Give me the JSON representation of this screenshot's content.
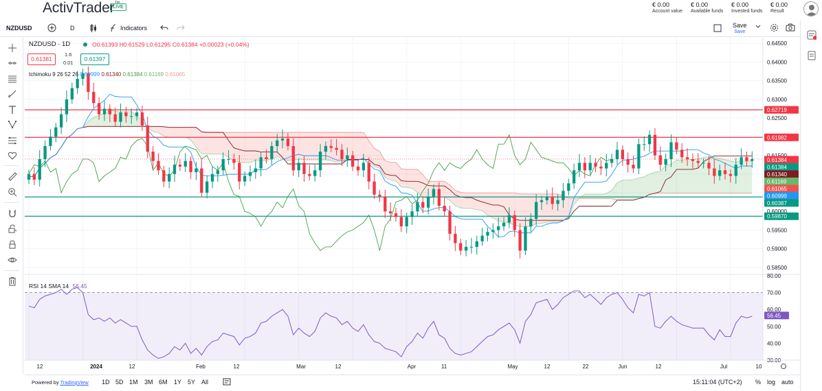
{
  "header": {
    "logo": "ActivTrader",
    "logo_mark": "™",
    "live_badge": "LIVE",
    "account": [
      {
        "value": "€ 0.00",
        "label": "Account value"
      },
      {
        "value": "€ 0.00",
        "label": "Available funds"
      },
      {
        "value": "€ 0.00",
        "label": "Invested funds"
      },
      {
        "value": "€ 0.00",
        "label": "Result"
      }
    ]
  },
  "toolbar": {
    "symbol": "NZDUSD",
    "interval": "D",
    "indicators_label": "Indicators",
    "save_label": "Save",
    "save_sub": "Save"
  },
  "legend": {
    "title": "NZDUSD · 1D",
    "ohlc": "O0.61393 H0.61529 L0.61295 C0.61384 +0.00023 (+0.04%)",
    "sell_price": "0.61381",
    "buy_price": "0.61397",
    "lot": "1.6",
    "step": "0.01",
    "ichimoku_label": "Ichimoku 9 26 52 26",
    "ichimoku_values": [
      {
        "value": "0.60999",
        "color": "#2196f3"
      },
      {
        "value": "0.61340",
        "color": "#801922"
      },
      {
        "value": "0.61384",
        "color": "#43a047"
      },
      {
        "value": "0.61169",
        "color": "#a5d6a7"
      },
      {
        "value": "0.61065",
        "color": "#ef9a9a"
      }
    ],
    "rsi_label": "RSI 14 SMA 14",
    "rsi_value": "56.45"
  },
  "price_axis": [
    "0.64500",
    "0.64000",
    "0.63500",
    "0.63000",
    "0.62500",
    "0.62000",
    "0.61500",
    "0.61000",
    "0.60500",
    "0.60000",
    "0.59500",
    "0.59000",
    "0.58500"
  ],
  "rsi_axis": [
    "80.00",
    "70.00",
    "60.00",
    "50.00",
    "40.00",
    "30.00"
  ],
  "price_labels": [
    {
      "value": "0.62719",
      "color": "#f23645"
    },
    {
      "value": "0.61982",
      "color": "#f23645"
    },
    {
      "value": "0.61384",
      "color": "#f23645"
    },
    {
      "value": "0.61384",
      "color": "#089981"
    },
    {
      "value": "0.61340",
      "color": "#801922"
    },
    {
      "value": "0.61169",
      "color": "#66bb6a"
    },
    {
      "value": "0.61065",
      "color": "#ef5350"
    },
    {
      "value": "0.60999",
      "color": "#2196f3"
    },
    {
      "value": "0.60387",
      "color": "#089981"
    },
    {
      "value": "0.59870",
      "color": "#089981"
    }
  ],
  "rsi_price_label": "56.45",
  "time_axis": [
    "12",
    "2024",
    "12",
    "Feb",
    "12",
    "Mar",
    "12",
    "Apr",
    "11",
    "May",
    "12",
    "22",
    "Jun",
    "12",
    "Jul",
    "10"
  ],
  "bottom": {
    "powered": "Powered by",
    "tradingview": "TradingView",
    "ranges": [
      "1D",
      "5D",
      "1M",
      "3M",
      "6M",
      "1Y",
      "5Y",
      "All"
    ],
    "time": "15:11:04 (UTC+2)",
    "percent": "%",
    "log": "log",
    "auto": "auto"
  },
  "chart_data": {
    "type": "candlestick",
    "symbol": "NZDUSD",
    "interval": "1D",
    "ylim": [
      0.5835,
      0.6465
    ],
    "horizontal_lines": [
      {
        "value": 0.62719,
        "color": "#f23645"
      },
      {
        "value": 0.61982,
        "color": "#f23645"
      },
      {
        "value": 0.60387,
        "color": "#089981"
      },
      {
        "value": 0.5987,
        "color": "#089981"
      }
    ],
    "close": [
      0.61,
      0.6085,
      0.614,
      0.6175,
      0.62,
      0.6225,
      0.626,
      0.63,
      0.633,
      0.6355,
      0.637,
      0.632,
      0.629,
      0.626,
      0.6275,
      0.626,
      0.624,
      0.6265,
      0.6255,
      0.6255,
      0.6265,
      0.623,
      0.616,
      0.6135,
      0.611,
      0.608,
      0.61,
      0.6125,
      0.612,
      0.6135,
      0.6105,
      0.6115,
      0.605,
      0.608,
      0.61,
      0.611,
      0.614,
      0.614,
      0.613,
      0.608,
      0.6095,
      0.6105,
      0.6115,
      0.6145,
      0.614,
      0.6175,
      0.619,
      0.6195,
      0.6175,
      0.611,
      0.613,
      0.61,
      0.6095,
      0.611,
      0.616,
      0.6175,
      0.617,
      0.6165,
      0.614,
      0.615,
      0.612,
      0.611,
      0.613,
      0.608,
      0.6045,
      0.604,
      0.6,
      0.5995,
      0.5985,
      0.596,
      0.5985,
      0.6,
      0.6025,
      0.601,
      0.604,
      0.606,
      0.6015,
      0.6,
      0.594,
      0.5915,
      0.5895,
      0.5905,
      0.5905,
      0.592,
      0.5935,
      0.5945,
      0.595,
      0.596,
      0.597,
      0.599,
      0.595,
      0.5895,
      0.596,
      0.598,
      0.6025,
      0.603,
      0.604,
      0.602,
      0.603,
      0.6055,
      0.6075,
      0.611,
      0.613,
      0.611,
      0.613,
      0.612,
      0.6115,
      0.613,
      0.614,
      0.6165,
      0.614,
      0.6125,
      0.6115,
      0.618,
      0.618,
      0.6205,
      0.615,
      0.6125,
      0.614,
      0.6185,
      0.6165,
      0.6145,
      0.614,
      0.6135,
      0.613,
      0.613,
      0.6115,
      0.6095,
      0.611,
      0.61,
      0.6095,
      0.6125,
      0.6145,
      0.6135,
      0.614
    ],
    "rsi": {
      "ylim": [
        30,
        80
      ],
      "bands": [
        30,
        70
      ],
      "values": [
        62,
        61,
        66,
        68,
        69,
        70,
        72,
        69,
        72,
        73,
        70,
        57,
        54,
        55,
        53,
        55,
        52,
        54,
        52,
        50,
        50,
        42,
        36,
        33,
        31,
        32,
        34,
        38,
        36,
        40,
        34,
        37,
        33,
        38,
        41,
        42,
        46,
        45,
        44,
        39,
        43,
        44,
        46,
        52,
        53,
        56,
        58,
        60,
        56,
        45,
        49,
        46,
        44,
        47,
        55,
        58,
        56,
        55,
        51,
        53,
        49,
        47,
        51,
        45,
        41,
        40,
        37,
        36,
        35,
        32,
        38,
        41,
        46,
        43,
        49,
        53,
        45,
        43,
        37,
        34,
        33,
        34,
        35,
        38,
        41,
        44,
        45,
        48,
        50,
        52,
        48,
        40,
        53,
        57,
        64,
        65,
        66,
        60,
        63,
        67,
        69,
        71,
        71,
        67,
        69,
        66,
        63,
        67,
        69,
        70,
        66,
        61,
        58,
        69,
        68,
        70,
        50,
        49,
        53,
        56,
        53,
        51,
        50,
        49,
        49,
        49,
        45,
        42,
        48,
        44,
        44,
        52,
        56,
        55,
        56
      ]
    }
  }
}
